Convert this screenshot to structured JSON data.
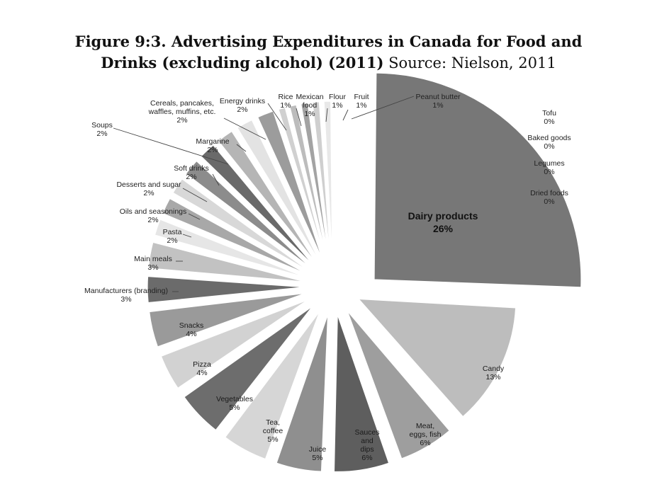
{
  "title": {
    "bold": "Figure 9:3. Advertising Expenditures in Canada for Food and Drinks (excluding alcohol) (2011)",
    "line1": "Figure 9:3. Advertising Expenditures in Canada for Food and",
    "line2_bold": "Drinks (excluding alcohol) (2011)",
    "source": "Source: Nielson, 2011"
  },
  "chart_data": {
    "type": "pie",
    "title": "Figure 9:3. Advertising Expenditures in Canada for Food and Drinks (excluding alcohol) (2011)",
    "source": "Source: Nielson, 2011",
    "exploded": true,
    "slices": [
      {
        "key": "dairy",
        "label": "Dairy products",
        "value_label": "26%",
        "value": 26,
        "color": "#777777"
      },
      {
        "key": "candy",
        "label": "Candy",
        "value_label": "13%",
        "value": 13,
        "color": "#bdbdbd"
      },
      {
        "key": "meat",
        "label": "Meat, eggs, fish",
        "lines": [
          "Meat,",
          "eggs, fish"
        ],
        "value_label": "6%",
        "value": 6,
        "color": "#9e9e9e"
      },
      {
        "key": "sauces",
        "label": "Sauces and dips",
        "lines": [
          "Sauces",
          "and",
          "dips"
        ],
        "value_label": "6%",
        "value": 6,
        "color": "#5e5e5e"
      },
      {
        "key": "juice",
        "label": "Juice",
        "value_label": "5%",
        "value": 5,
        "color": "#8f8f8f"
      },
      {
        "key": "tea",
        "label": "Tea, coffee",
        "lines": [
          "Tea,",
          "coffee"
        ],
        "value_label": "5%",
        "value": 5,
        "color": "#d6d6d6"
      },
      {
        "key": "vegetables",
        "label": "Vegetables",
        "value_label": "5%",
        "value": 5,
        "color": "#6d6d6d"
      },
      {
        "key": "pizza",
        "label": "Pizza",
        "value_label": "4%",
        "value": 4,
        "color": "#d2d2d2"
      },
      {
        "key": "snacks",
        "label": "Snacks",
        "value_label": "4%",
        "value": 4,
        "color": "#9a9a9a"
      },
      {
        "key": "manufacturers",
        "label": "Manufacturers (branding)",
        "value_label": "3%",
        "value": 3,
        "color": "#6b6b6b"
      },
      {
        "key": "mainmeals",
        "label": "Main meals",
        "value_label": "3%",
        "value": 3,
        "color": "#c2c2c2"
      },
      {
        "key": "pasta",
        "label": "Pasta",
        "value_label": "2%",
        "value": 2,
        "color": "#e6e6e6"
      },
      {
        "key": "oils",
        "label": "Oils and seasonings",
        "value_label": "2%",
        "value": 2,
        "color": "#a8a8a8"
      },
      {
        "key": "desserts",
        "label": "Desserts and sugar",
        "value_label": "2%",
        "value": 2,
        "color": "#d8d8d8"
      },
      {
        "key": "softdrinks",
        "label": "Soft drinks",
        "value_label": "2%",
        "value": 2,
        "color": "#8c8c8c"
      },
      {
        "key": "soups",
        "label": "Soups",
        "value_label": "2%",
        "value": 2,
        "color": "#6a6a6a"
      },
      {
        "key": "margarine",
        "label": "Margarine",
        "value_label": "2%",
        "value": 2,
        "color": "#b5b5b5"
      },
      {
        "key": "cereals",
        "label": "Cereals, pancakes, waffles, muffins, etc.",
        "lines": [
          "Cereals, pancakes,",
          "waffles, muffins, etc."
        ],
        "value_label": "2%",
        "value": 2,
        "color": "#e3e3e3"
      },
      {
        "key": "energy",
        "label": "Energy drinks",
        "value_label": "2%",
        "value": 2,
        "color": "#9c9c9c"
      },
      {
        "key": "rice",
        "label": "Rice",
        "value_label": "1%",
        "value": 1,
        "color": "#d0d0d0"
      },
      {
        "key": "mexican",
        "label": "Mexican food",
        "lines": [
          "Mexican",
          "food"
        ],
        "value_label": "1%",
        "value": 1,
        "color": "#bcbcbc"
      },
      {
        "key": "flour",
        "label": "Flour",
        "value_label": "1%",
        "value": 1,
        "color": "#a3a3a3"
      },
      {
        "key": "fruit",
        "label": "Fruit",
        "value_label": "1%",
        "value": 1,
        "color": "#cfcfcf"
      },
      {
        "key": "peanut",
        "label": "Peanut butter",
        "value_label": "1%",
        "value": 1,
        "color": "#e8e8e8"
      },
      {
        "key": "tofu",
        "label": "Tofu",
        "value_label": "0%",
        "value": 0,
        "color": "#eeeeee"
      },
      {
        "key": "baked",
        "label": "Baked goods",
        "value_label": "0%",
        "value": 0,
        "color": "#eeeeee"
      },
      {
        "key": "legumes",
        "label": "Legumes",
        "value_label": "0%",
        "value": 0,
        "color": "#eeeeee"
      },
      {
        "key": "dried",
        "label": "Dried foods",
        "value_label": "0%",
        "value": 0,
        "color": "#eeeeee"
      }
    ]
  }
}
